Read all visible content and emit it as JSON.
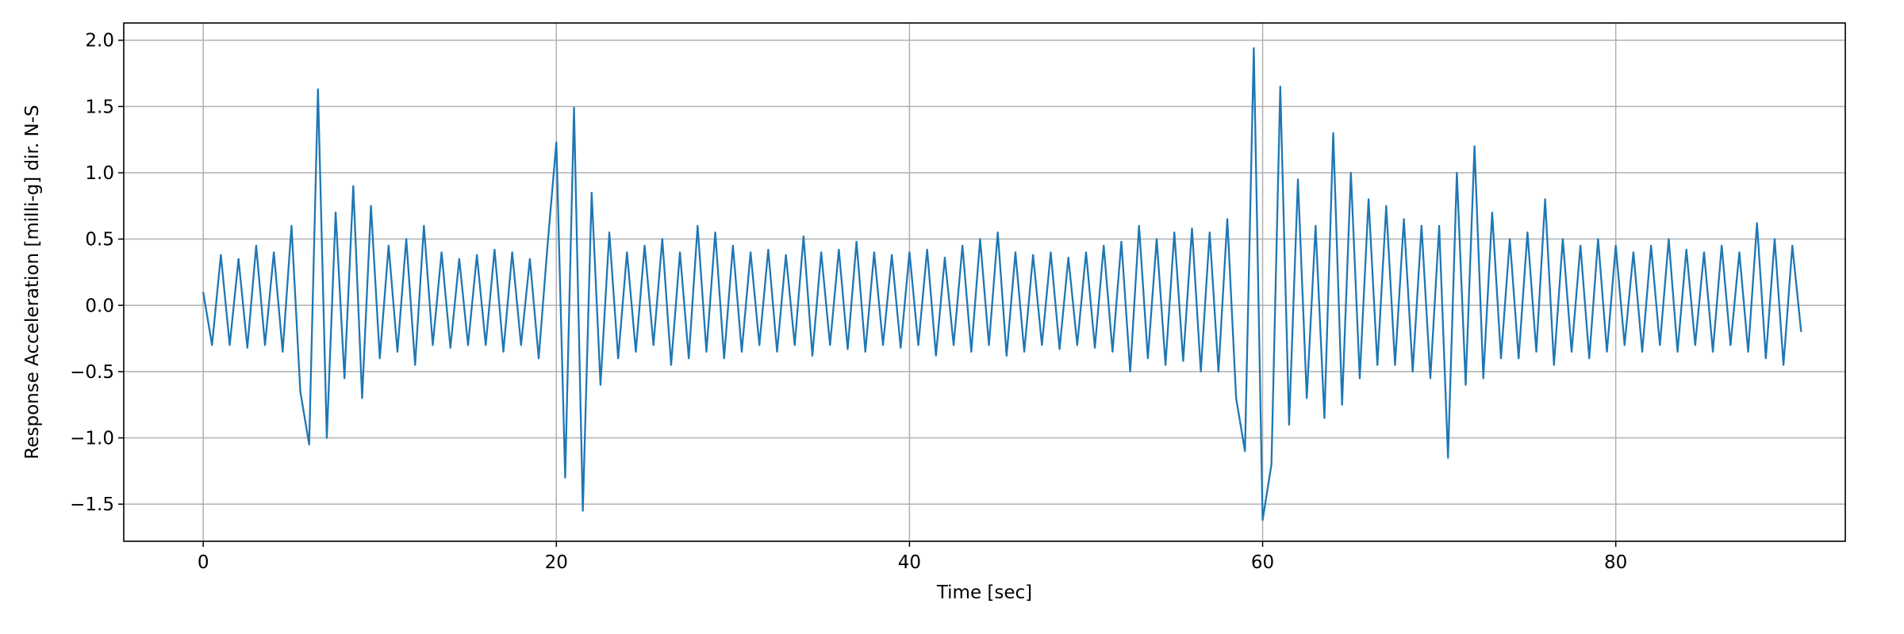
{
  "chart_data": {
    "type": "line",
    "xlabel": "Time [sec]",
    "ylabel": "Response Acceleration [milli-g] dir. N-S",
    "color": "#1f77b4",
    "grid": true,
    "xlim": [
      -4.5,
      93.0
    ],
    "ylim": [
      -1.78,
      2.13
    ],
    "xticks": [
      0,
      20,
      40,
      60,
      80
    ],
    "yticks": [
      {
        "value": -1.5,
        "label": "−1.5"
      },
      {
        "value": -1.0,
        "label": "−1.0"
      },
      {
        "value": -0.5,
        "label": "−0.5"
      },
      {
        "value": 0.0,
        "label": "0.0"
      },
      {
        "value": 0.5,
        "label": "0.5"
      },
      {
        "value": 1.0,
        "label": "1.0"
      },
      {
        "value": 1.5,
        "label": "1.5"
      },
      {
        "value": 2.0,
        "label": "2.0"
      }
    ],
    "x": [
      0,
      0.5,
      1,
      1.5,
      2,
      2.5,
      3,
      3.5,
      4,
      4.5,
      5,
      5.5,
      6,
      6.5,
      7,
      7.5,
      8,
      8.5,
      9,
      9.5,
      10,
      10.5,
      11,
      11.5,
      12,
      12.5,
      13,
      13.5,
      14,
      14.5,
      15,
      15.5,
      16,
      16.5,
      17,
      17.5,
      18,
      18.5,
      19,
      19.5,
      20,
      20.5,
      21,
      21.5,
      22,
      22.5,
      23,
      23.5,
      24,
      24.5,
      25,
      25.5,
      26,
      26.5,
      27,
      27.5,
      28,
      28.5,
      29,
      29.5,
      30,
      30.5,
      31,
      31.5,
      32,
      32.5,
      33,
      33.5,
      34,
      34.5,
      35,
      35.5,
      36,
      36.5,
      37,
      37.5,
      38,
      38.5,
      39,
      39.5,
      40,
      40.5,
      41,
      41.5,
      42,
      42.5,
      43,
      43.5,
      44,
      44.5,
      45,
      45.5,
      46,
      46.5,
      47,
      47.5,
      48,
      48.5,
      49,
      49.5,
      50,
      50.5,
      51,
      51.5,
      52,
      52.5,
      53,
      53.5,
      54,
      54.5,
      55,
      55.5,
      56,
      56.5,
      57,
      57.5,
      58,
      58.5,
      59,
      59.5,
      60,
      60.5,
      61,
      61.5,
      62,
      62.5,
      63,
      63.5,
      64,
      64.5,
      65,
      65.5,
      66,
      66.5,
      67,
      67.5,
      68,
      68.5,
      69,
      69.5,
      70,
      70.5,
      71,
      71.5,
      72,
      72.5,
      73,
      73.5,
      74,
      74.5,
      75,
      75.5,
      76,
      76.5,
      77,
      77.5,
      78,
      78.5,
      79,
      79.5,
      80,
      80.5,
      81,
      81.5,
      82,
      82.5,
      83,
      83.5,
      84,
      84.5,
      85,
      85.5,
      86,
      86.5,
      87,
      87.5,
      88,
      88.5,
      89,
      89.5,
      90,
      90.5
    ],
    "values": [
      0.1,
      -0.3,
      0.38,
      -0.3,
      0.35,
      -0.32,
      0.45,
      -0.3,
      0.4,
      -0.35,
      0.6,
      -0.65,
      -1.05,
      1.63,
      -1.0,
      0.7,
      -0.55,
      0.9,
      -0.7,
      0.75,
      -0.4,
      0.45,
      -0.35,
      0.5,
      -0.45,
      0.6,
      -0.3,
      0.4,
      -0.32,
      0.35,
      -0.3,
      0.38,
      -0.3,
      0.42,
      -0.35,
      0.4,
      -0.3,
      0.35,
      -0.4,
      0.45,
      1.23,
      -1.3,
      1.49,
      -1.55,
      0.85,
      -0.6,
      0.55,
      -0.4,
      0.4,
      -0.35,
      0.45,
      -0.3,
      0.5,
      -0.45,
      0.4,
      -0.4,
      0.6,
      -0.35,
      0.55,
      -0.4,
      0.45,
      -0.35,
      0.4,
      -0.3,
      0.42,
      -0.35,
      0.38,
      -0.3,
      0.52,
      -0.38,
      0.4,
      -0.3,
      0.42,
      -0.33,
      0.48,
      -0.35,
      0.4,
      -0.3,
      0.38,
      -0.32,
      0.4,
      -0.3,
      0.42,
      -0.38,
      0.36,
      -0.3,
      0.45,
      -0.35,
      0.5,
      -0.3,
      0.55,
      -0.38,
      0.4,
      -0.35,
      0.38,
      -0.3,
      0.4,
      -0.33,
      0.36,
      -0.3,
      0.4,
      -0.32,
      0.45,
      -0.35,
      0.48,
      -0.5,
      0.6,
      -0.4,
      0.5,
      -0.45,
      0.55,
      -0.42,
      0.58,
      -0.5,
      0.55,
      -0.5,
      0.65,
      -0.7,
      -1.1,
      1.94,
      -1.62,
      -1.2,
      1.65,
      -0.9,
      0.95,
      -0.7,
      0.6,
      -0.85,
      1.3,
      -0.75,
      1.0,
      -0.55,
      0.8,
      -0.45,
      0.75,
      -0.45,
      0.65,
      -0.5,
      0.6,
      -0.55,
      0.6,
      -1.15,
      1.0,
      -0.6,
      1.2,
      -0.55,
      0.7,
      -0.4,
      0.5,
      -0.4,
      0.55,
      -0.35,
      0.8,
      -0.45,
      0.5,
      -0.35,
      0.45,
      -0.4,
      0.5,
      -0.35,
      0.45,
      -0.3,
      0.4,
      -0.35,
      0.45,
      -0.3,
      0.5,
      -0.35,
      0.42,
      -0.3,
      0.4,
      -0.35,
      0.45,
      -0.3,
      0.4,
      -0.35,
      0.62,
      -0.4,
      0.5,
      -0.45,
      0.45,
      -0.2
    ]
  }
}
